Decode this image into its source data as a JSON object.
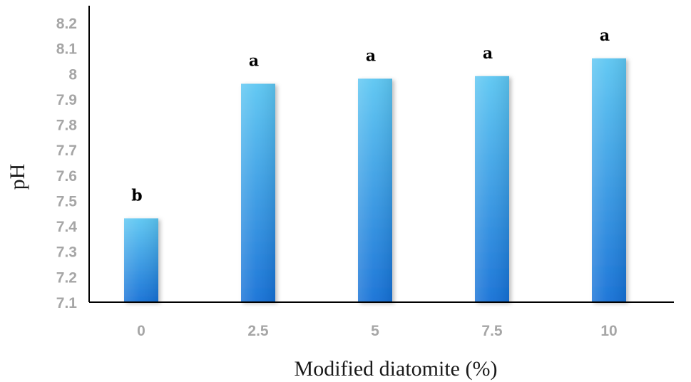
{
  "chart_data": {
    "type": "bar",
    "categories": [
      "0",
      "2.5",
      "5",
      "7.5",
      "10"
    ],
    "values": [
      7.43,
      7.96,
      7.98,
      7.99,
      8.06
    ],
    "significance_letters": [
      "b",
      "a",
      "a",
      "a",
      "a"
    ],
    "xlabel": "Modified diatomite (%)",
    "ylabel": "pH",
    "ylim": [
      7.1,
      8.2
    ],
    "yticks": [
      "7.1",
      "7.2",
      "7.3",
      "7.4",
      "7.5",
      "7.6",
      "7.7",
      "7.8",
      "7.9",
      "8",
      "8.1",
      "8.2"
    ],
    "grid": false,
    "legend": "none",
    "colors": {
      "bar_light": "#5cc6f2",
      "bar_dark": "#1570d6",
      "axis": "#000000",
      "tick_text": "#a6a6a6"
    }
  }
}
